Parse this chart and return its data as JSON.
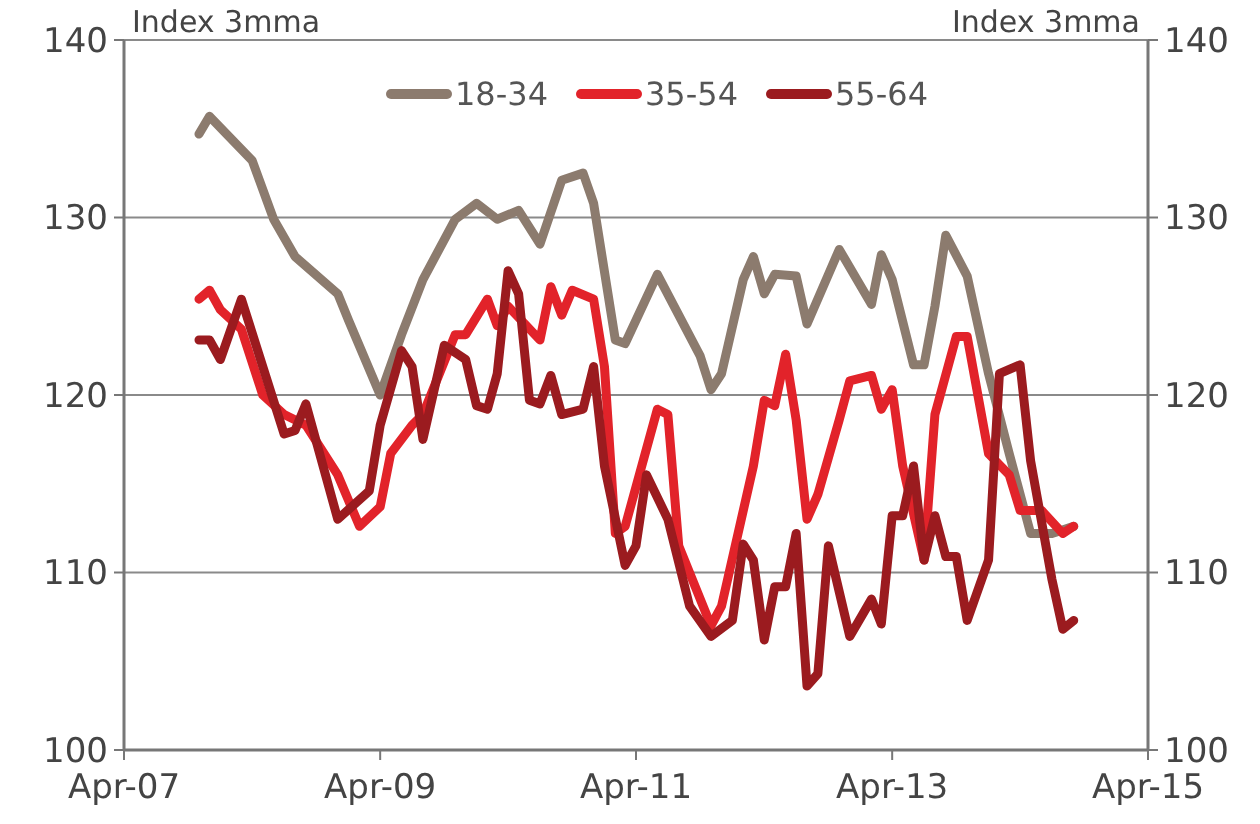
{
  "chart_data": {
    "type": "line",
    "ylabel": "Index 3mma",
    "y2label": "Index 3mma",
    "xlim": [
      "2007-04",
      "2015-04"
    ],
    "xticks": [
      {
        "value": "2007-04",
        "label": "Apr-07"
      },
      {
        "value": "2009-04",
        "label": "Apr-09"
      },
      {
        "value": "2011-04",
        "label": "Apr-11"
      },
      {
        "value": "2013-04",
        "label": "Apr-13"
      },
      {
        "value": "2015-04",
        "label": "Apr-15"
      }
    ],
    "ylim": [
      100,
      140
    ],
    "yticks": [
      100,
      110,
      120,
      130,
      140
    ],
    "y2lim": [
      100,
      140
    ],
    "y2ticks": [
      100,
      110,
      120,
      130,
      140
    ],
    "grid": "y",
    "legend": "top",
    "marker": "none",
    "line_style": "solid",
    "series": [
      {
        "name": "18-34",
        "color": "#8c7b6e",
        "x": [
          "2007-11",
          "2007-12",
          "2008-04",
          "2008-06",
          "2008-08",
          "2008-12",
          "2009-01",
          "2009-04",
          "2009-06",
          "2009-08",
          "2009-11",
          "2010-01",
          "2010-03",
          "2010-05",
          "2010-07",
          "2010-09",
          "2010-11",
          "2010-12",
          "2011-02",
          "2011-03",
          "2011-06",
          "2011-10",
          "2011-11",
          "2011-12",
          "2012-02",
          "2012-03",
          "2012-04",
          "2012-05",
          "2012-07",
          "2012-08",
          "2012-11",
          "2013-02",
          "2013-03",
          "2013-04",
          "2013-06",
          "2013-07",
          "2013-08",
          "2013-09",
          "2013-11",
          "2014-01",
          "2014-03",
          "2014-05",
          "2014-07",
          "2014-09"
        ],
        "values": [
          134.7,
          135.7,
          133.2,
          129.9,
          127.8,
          125.7,
          124.2,
          120,
          123.4,
          126.5,
          129.9,
          130.8,
          129.9,
          130.4,
          128.5,
          132.1,
          132.5,
          130.8,
          123.1,
          122.9,
          126.8,
          122.2,
          120.3,
          121.2,
          126.5,
          127.8,
          125.7,
          126.8,
          126.7,
          124,
          128.2,
          125.1,
          127.9,
          126.5,
          121.7,
          121.7,
          125,
          129,
          126.7,
          121.2,
          116.7,
          112.2,
          112.2,
          112.6
        ]
      },
      {
        "name": "35-54",
        "color": "#e2232a",
        "x": [
          "2007-11",
          "2007-12",
          "2008-01",
          "2008-03",
          "2008-05",
          "2008-07",
          "2008-09",
          "2008-12",
          "2009-02",
          "2009-04",
          "2009-05",
          "2009-07",
          "2009-08",
          "2009-11",
          "2009-12",
          "2010-02",
          "2010-03",
          "2010-04",
          "2010-07",
          "2010-08",
          "2010-09",
          "2010-10",
          "2010-12",
          "2011-01",
          "2011-02",
          "2011-03",
          "2011-06",
          "2011-07",
          "2011-08",
          "2011-11",
          "2011-12",
          "2012-03",
          "2012-04",
          "2012-05",
          "2012-06",
          "2012-07",
          "2012-08",
          "2012-09",
          "2012-11",
          "2012-12",
          "2013-02",
          "2013-03",
          "2013-04",
          "2013-05",
          "2013-07",
          "2013-08",
          "2013-10",
          "2013-11",
          "2014-01",
          "2014-03",
          "2014-04",
          "2014-06",
          "2014-08",
          "2014-09"
        ],
        "values": [
          125.4,
          125.9,
          124.8,
          123.7,
          120,
          118.9,
          118.3,
          115.5,
          112.6,
          113.7,
          116.7,
          118.3,
          118.9,
          123.4,
          123.4,
          125.4,
          123.9,
          125,
          123.1,
          126.1,
          124.5,
          125.9,
          125.4,
          121.6,
          112.2,
          112.6,
          119.2,
          118.9,
          111.5,
          107,
          108.1,
          116,
          119.7,
          119.4,
          122.3,
          118.6,
          113,
          114.4,
          118.6,
          120.8,
          121.1,
          119.2,
          120.3,
          116,
          110.7,
          118.9,
          123.3,
          123.3,
          116.7,
          115.5,
          113.5,
          113.5,
          112.2,
          112.6
        ]
      },
      {
        "name": "55-64",
        "color": "#9b1b1f",
        "x": [
          "2007-11",
          "2007-12",
          "2008-01",
          "2008-03",
          "2008-05",
          "2008-07",
          "2008-08",
          "2008-09",
          "2008-12",
          "2009-03",
          "2009-04",
          "2009-06",
          "2009-07",
          "2009-08",
          "2009-10",
          "2009-12",
          "2010-01",
          "2010-02",
          "2010-03",
          "2010-04",
          "2010-05",
          "2010-06",
          "2010-07",
          "2010-08",
          "2010-09",
          "2010-11",
          "2010-12",
          "2011-01",
          "2011-03",
          "2011-04",
          "2011-05",
          "2011-07",
          "2011-09",
          "2011-11",
          "2012-01",
          "2012-02",
          "2012-03",
          "2012-04",
          "2012-05",
          "2012-06",
          "2012-07",
          "2012-08",
          "2012-09",
          "2012-10",
          "2012-12",
          "2013-02",
          "2013-03",
          "2013-04",
          "2013-05",
          "2013-06",
          "2013-07",
          "2013-08",
          "2013-09",
          "2013-10",
          "2013-11",
          "2014-01",
          "2014-02",
          "2014-04",
          "2014-05",
          "2014-07",
          "2014-08",
          "2014-09"
        ],
        "values": [
          123.1,
          123.1,
          122,
          125.4,
          121.6,
          117.8,
          118,
          119.5,
          113,
          114.6,
          118.3,
          122.5,
          121.6,
          117.5,
          122.8,
          122,
          119.4,
          119.2,
          121.2,
          127,
          125.7,
          119.7,
          119.5,
          121.1,
          118.9,
          119.2,
          121.6,
          116,
          110.4,
          111.5,
          115.5,
          113,
          108.1,
          106.4,
          107.3,
          111.6,
          110.7,
          106.2,
          109.2,
          109.2,
          112.2,
          103.6,
          104.3,
          111.5,
          106.4,
          108.5,
          107.1,
          113.2,
          113.2,
          116,
          110.7,
          113.2,
          110.9,
          110.9,
          107.3,
          110.7,
          121.2,
          121.7,
          116.3,
          109.6,
          106.8,
          107.3
        ]
      }
    ]
  }
}
